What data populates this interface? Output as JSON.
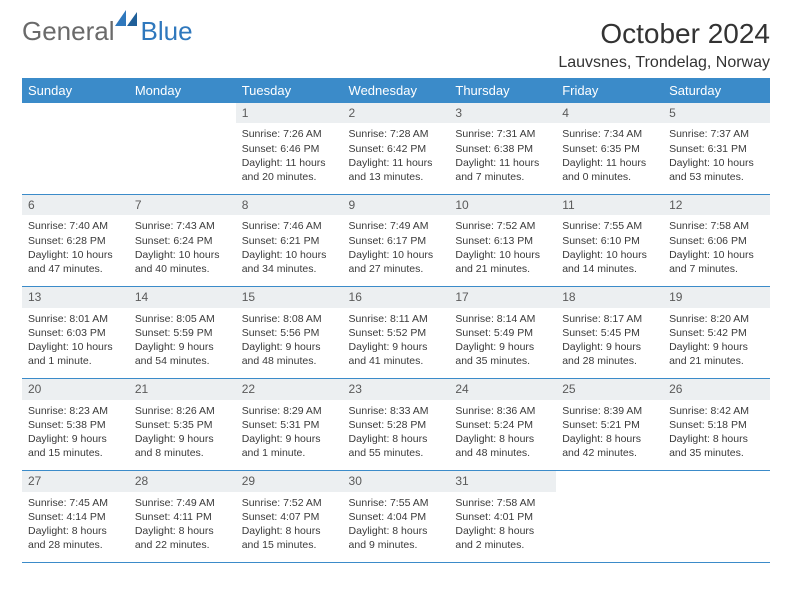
{
  "logo": {
    "text1": "General",
    "text2": "Blue"
  },
  "header": {
    "month_title": "October 2024",
    "location": "Lauvsnes, Trondelag, Norway"
  },
  "colors": {
    "header_bg": "#3b8bc9",
    "header_text": "#ffffff",
    "daynum_bg": "#eceff1",
    "daynum_text": "#5a5a5a",
    "body_text": "#3a3a3a",
    "divider": "#3b8bc9",
    "logo_gray": "#6a6a6a",
    "logo_blue": "#2f78bd",
    "title_text": "#333333",
    "page_bg": "#ffffff"
  },
  "calendar": {
    "day_headers": [
      "Sunday",
      "Monday",
      "Tuesday",
      "Wednesday",
      "Thursday",
      "Friday",
      "Saturday"
    ],
    "weeks": [
      [
        null,
        null,
        {
          "n": "1",
          "sunrise": "Sunrise: 7:26 AM",
          "sunset": "Sunset: 6:46 PM",
          "daylight": "Daylight: 11 hours and 20 minutes."
        },
        {
          "n": "2",
          "sunrise": "Sunrise: 7:28 AM",
          "sunset": "Sunset: 6:42 PM",
          "daylight": "Daylight: 11 hours and 13 minutes."
        },
        {
          "n": "3",
          "sunrise": "Sunrise: 7:31 AM",
          "sunset": "Sunset: 6:38 PM",
          "daylight": "Daylight: 11 hours and 7 minutes."
        },
        {
          "n": "4",
          "sunrise": "Sunrise: 7:34 AM",
          "sunset": "Sunset: 6:35 PM",
          "daylight": "Daylight: 11 hours and 0 minutes."
        },
        {
          "n": "5",
          "sunrise": "Sunrise: 7:37 AM",
          "sunset": "Sunset: 6:31 PM",
          "daylight": "Daylight: 10 hours and 53 minutes."
        }
      ],
      [
        {
          "n": "6",
          "sunrise": "Sunrise: 7:40 AM",
          "sunset": "Sunset: 6:28 PM",
          "daylight": "Daylight: 10 hours and 47 minutes."
        },
        {
          "n": "7",
          "sunrise": "Sunrise: 7:43 AM",
          "sunset": "Sunset: 6:24 PM",
          "daylight": "Daylight: 10 hours and 40 minutes."
        },
        {
          "n": "8",
          "sunrise": "Sunrise: 7:46 AM",
          "sunset": "Sunset: 6:21 PM",
          "daylight": "Daylight: 10 hours and 34 minutes."
        },
        {
          "n": "9",
          "sunrise": "Sunrise: 7:49 AM",
          "sunset": "Sunset: 6:17 PM",
          "daylight": "Daylight: 10 hours and 27 minutes."
        },
        {
          "n": "10",
          "sunrise": "Sunrise: 7:52 AM",
          "sunset": "Sunset: 6:13 PM",
          "daylight": "Daylight: 10 hours and 21 minutes."
        },
        {
          "n": "11",
          "sunrise": "Sunrise: 7:55 AM",
          "sunset": "Sunset: 6:10 PM",
          "daylight": "Daylight: 10 hours and 14 minutes."
        },
        {
          "n": "12",
          "sunrise": "Sunrise: 7:58 AM",
          "sunset": "Sunset: 6:06 PM",
          "daylight": "Daylight: 10 hours and 7 minutes."
        }
      ],
      [
        {
          "n": "13",
          "sunrise": "Sunrise: 8:01 AM",
          "sunset": "Sunset: 6:03 PM",
          "daylight": "Daylight: 10 hours and 1 minute."
        },
        {
          "n": "14",
          "sunrise": "Sunrise: 8:05 AM",
          "sunset": "Sunset: 5:59 PM",
          "daylight": "Daylight: 9 hours and 54 minutes."
        },
        {
          "n": "15",
          "sunrise": "Sunrise: 8:08 AM",
          "sunset": "Sunset: 5:56 PM",
          "daylight": "Daylight: 9 hours and 48 minutes."
        },
        {
          "n": "16",
          "sunrise": "Sunrise: 8:11 AM",
          "sunset": "Sunset: 5:52 PM",
          "daylight": "Daylight: 9 hours and 41 minutes."
        },
        {
          "n": "17",
          "sunrise": "Sunrise: 8:14 AM",
          "sunset": "Sunset: 5:49 PM",
          "daylight": "Daylight: 9 hours and 35 minutes."
        },
        {
          "n": "18",
          "sunrise": "Sunrise: 8:17 AM",
          "sunset": "Sunset: 5:45 PM",
          "daylight": "Daylight: 9 hours and 28 minutes."
        },
        {
          "n": "19",
          "sunrise": "Sunrise: 8:20 AM",
          "sunset": "Sunset: 5:42 PM",
          "daylight": "Daylight: 9 hours and 21 minutes."
        }
      ],
      [
        {
          "n": "20",
          "sunrise": "Sunrise: 8:23 AM",
          "sunset": "Sunset: 5:38 PM",
          "daylight": "Daylight: 9 hours and 15 minutes."
        },
        {
          "n": "21",
          "sunrise": "Sunrise: 8:26 AM",
          "sunset": "Sunset: 5:35 PM",
          "daylight": "Daylight: 9 hours and 8 minutes."
        },
        {
          "n": "22",
          "sunrise": "Sunrise: 8:29 AM",
          "sunset": "Sunset: 5:31 PM",
          "daylight": "Daylight: 9 hours and 1 minute."
        },
        {
          "n": "23",
          "sunrise": "Sunrise: 8:33 AM",
          "sunset": "Sunset: 5:28 PM",
          "daylight": "Daylight: 8 hours and 55 minutes."
        },
        {
          "n": "24",
          "sunrise": "Sunrise: 8:36 AM",
          "sunset": "Sunset: 5:24 PM",
          "daylight": "Daylight: 8 hours and 48 minutes."
        },
        {
          "n": "25",
          "sunrise": "Sunrise: 8:39 AM",
          "sunset": "Sunset: 5:21 PM",
          "daylight": "Daylight: 8 hours and 42 minutes."
        },
        {
          "n": "26",
          "sunrise": "Sunrise: 8:42 AM",
          "sunset": "Sunset: 5:18 PM",
          "daylight": "Daylight: 8 hours and 35 minutes."
        }
      ],
      [
        {
          "n": "27",
          "sunrise": "Sunrise: 7:45 AM",
          "sunset": "Sunset: 4:14 PM",
          "daylight": "Daylight: 8 hours and 28 minutes."
        },
        {
          "n": "28",
          "sunrise": "Sunrise: 7:49 AM",
          "sunset": "Sunset: 4:11 PM",
          "daylight": "Daylight: 8 hours and 22 minutes."
        },
        {
          "n": "29",
          "sunrise": "Sunrise: 7:52 AM",
          "sunset": "Sunset: 4:07 PM",
          "daylight": "Daylight: 8 hours and 15 minutes."
        },
        {
          "n": "30",
          "sunrise": "Sunrise: 7:55 AM",
          "sunset": "Sunset: 4:04 PM",
          "daylight": "Daylight: 8 hours and 9 minutes."
        },
        {
          "n": "31",
          "sunrise": "Sunrise: 7:58 AM",
          "sunset": "Sunset: 4:01 PM",
          "daylight": "Daylight: 8 hours and 2 minutes."
        },
        null,
        null
      ]
    ]
  }
}
